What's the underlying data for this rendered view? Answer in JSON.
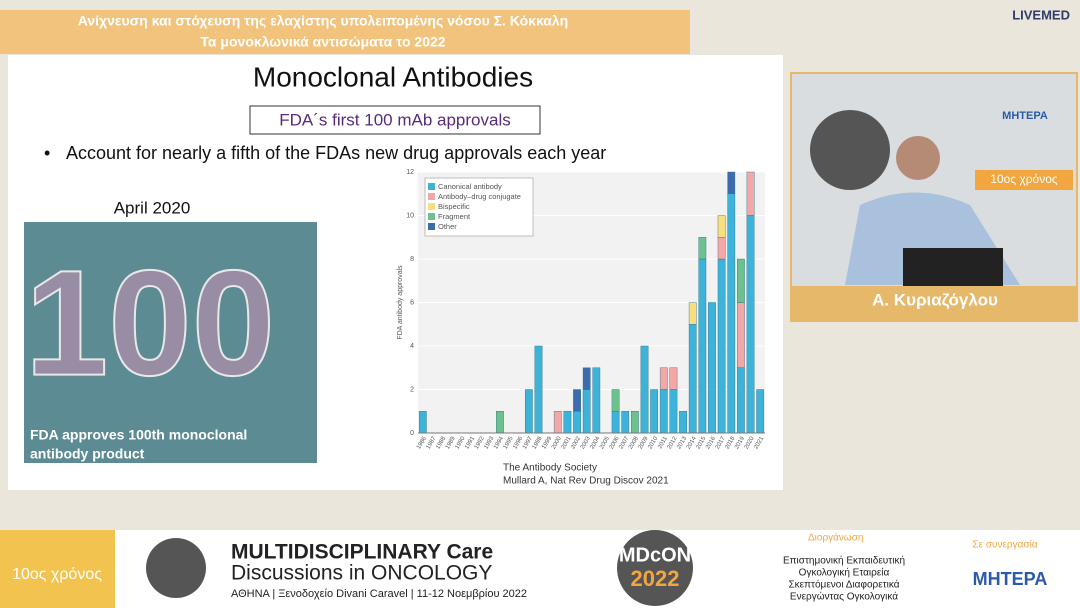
{
  "header": {
    "title_line1": "Ανίχνευση και στόχευση της ελαχίστης υπολειπομένης νόσου Σ. Κόκκαλη",
    "title_line2": "Τα μονοκλωνικά αντισώματα το 2022",
    "brand": "LIVEMED"
  },
  "slide": {
    "title": "Monoclonal Antibodies",
    "boxed_subtitle": "FDA´s first 100 mAb approvals",
    "bullet": "Account for nearly a fifth of the FDAs new drug approvals each year",
    "image_label": "April 2020",
    "image_number": "100",
    "image_caption_line1": "FDA approves 100th monoclonal",
    "image_caption_line2": "antibody product",
    "source_line1": "The Antibody Society",
    "source_line2": "Mullard A, Nat Rev Drug Discov 2021"
  },
  "chart_data": {
    "type": "stacked_bar",
    "y_label": "FDA antibody approvals",
    "categories": [
      "1986",
      "1987",
      "1988",
      "1989",
      "1990",
      "1991",
      "1992",
      "1993",
      "1994",
      "1995",
      "1996",
      "1997",
      "1998",
      "1999",
      "2000",
      "2001",
      "2002",
      "2003",
      "2004",
      "2005",
      "2006",
      "2007",
      "2008",
      "2009",
      "2010",
      "2011",
      "2012",
      "2013",
      "2014",
      "2015",
      "2016",
      "2017",
      "2018",
      "2019",
      "2020",
      "2021"
    ],
    "series": [
      {
        "name": "Canonical antibody",
        "color": "#3db3da",
        "values": [
          1,
          0,
          0,
          0,
          0,
          0,
          0,
          0,
          0,
          0,
          0,
          2,
          4,
          0,
          0,
          1,
          1,
          2,
          3,
          0,
          1,
          1,
          0,
          4,
          2,
          2,
          2,
          1,
          5,
          8,
          6,
          8,
          11,
          3,
          10,
          2
        ]
      },
      {
        "name": "Antibody–drug conjugate",
        "color": "#f3a7a6",
        "values": [
          0,
          0,
          0,
          0,
          0,
          0,
          0,
          0,
          0,
          0,
          0,
          0,
          0,
          0,
          1,
          0,
          0,
          0,
          0,
          0,
          0,
          0,
          0,
          0,
          0,
          1,
          1,
          0,
          0,
          0,
          0,
          1,
          0,
          3,
          2,
          0
        ]
      },
      {
        "name": "Bispecific",
        "color": "#f6df7c",
        "values": [
          0,
          0,
          0,
          0,
          0,
          0,
          0,
          0,
          0,
          0,
          0,
          0,
          0,
          0,
          0,
          0,
          0,
          0,
          0,
          0,
          0,
          0,
          0,
          0,
          0,
          0,
          0,
          0,
          1,
          0,
          0,
          1,
          0,
          0,
          0,
          0
        ]
      },
      {
        "name": "Fragment",
        "color": "#6dc18d",
        "values": [
          0,
          0,
          0,
          0,
          0,
          0,
          0,
          0,
          1,
          0,
          0,
          0,
          0,
          0,
          0,
          0,
          0,
          0,
          0,
          0,
          1,
          0,
          1,
          0,
          0,
          0,
          0,
          0,
          0,
          1,
          0,
          0,
          0,
          2,
          0,
          0
        ]
      },
      {
        "name": "Other",
        "color": "#3d6cae",
        "values": [
          0,
          0,
          0,
          0,
          0,
          0,
          0,
          0,
          0,
          0,
          0,
          0,
          0,
          0,
          0,
          0,
          1,
          1,
          0,
          0,
          0,
          0,
          0,
          0,
          0,
          0,
          0,
          0,
          0,
          0,
          0,
          0,
          1,
          0,
          0,
          0
        ]
      }
    ],
    "ylim": [
      0,
      12
    ],
    "yticks": [
      0,
      2,
      4,
      6,
      8,
      10,
      12
    ],
    "grid": true,
    "legend": "top-left"
  },
  "speaker": {
    "name": "Α. Κυριαζόγλου",
    "backdrop_badge": "10ος χρόνος",
    "backdrop_logo": "ΜΗΤΕΡΑ"
  },
  "footer": {
    "badge": "10ος χρόνος",
    "event_line1": "MULTIDISCIPLINARY Care",
    "event_line2": "Discussions in ONCOLOGY",
    "venue": "ΑΘΗΝΑ | Ξενοδοχείο Divani Caravel | 11-12 Νοεμβρίου 2022",
    "logo_line1": "MDcON",
    "logo_line2": "2022",
    "organizer_label": "Διοργάνωση",
    "organizer": [
      "Επιστημονική Εκπαιδευτική",
      "Ογκολογική Εταιρεία",
      "Σκεπτόμενοι Διαφορετικά",
      "Ενεργώντας Ογκολογικά"
    ],
    "partner_label": "Σε συνεργασία",
    "partner": "ΜΗΤΕΡΑ"
  }
}
